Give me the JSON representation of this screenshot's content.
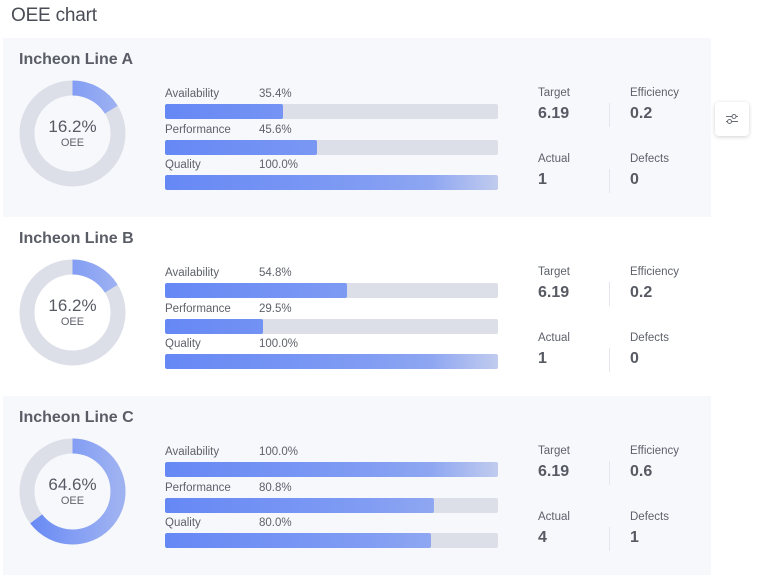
{
  "page": {
    "title": "OEE chart"
  },
  "settings_button": {
    "icon": "sliders-icon"
  },
  "colors": {
    "card_bg": "#f6f8fc",
    "accent": "#6688f5",
    "track": "#dcdfe7",
    "text": "#5b5f6b"
  },
  "lines": [
    {
      "name": "Incheon Line A",
      "shaded": true,
      "oee": {
        "value_text": "16.2%",
        "value": 16.2,
        "label": "OEE"
      },
      "metrics": [
        {
          "label": "Availability",
          "value_text": "35.4%",
          "value": 35.4
        },
        {
          "label": "Performance",
          "value_text": "45.6%",
          "value": 45.6
        },
        {
          "label": "Quality",
          "value_text": "100.0%",
          "value": 100.0
        }
      ],
      "stats": {
        "target": {
          "label": "Target",
          "value": "6.19"
        },
        "efficiency": {
          "label": "Efficiency",
          "value": "0.2"
        },
        "actual": {
          "label": "Actual",
          "value": "1"
        },
        "defects": {
          "label": "Defects",
          "value": "0"
        }
      }
    },
    {
      "name": "Incheon Line B",
      "shaded": false,
      "oee": {
        "value_text": "16.2%",
        "value": 16.2,
        "label": "OEE"
      },
      "metrics": [
        {
          "label": "Availability",
          "value_text": "54.8%",
          "value": 54.8
        },
        {
          "label": "Performance",
          "value_text": "29.5%",
          "value": 29.5
        },
        {
          "label": "Quality",
          "value_text": "100.0%",
          "value": 100.0
        }
      ],
      "stats": {
        "target": {
          "label": "Target",
          "value": "6.19"
        },
        "efficiency": {
          "label": "Efficiency",
          "value": "0.2"
        },
        "actual": {
          "label": "Actual",
          "value": "1"
        },
        "defects": {
          "label": "Defects",
          "value": "0"
        }
      }
    },
    {
      "name": "Incheon Line C",
      "shaded": true,
      "oee": {
        "value_text": "64.6%",
        "value": 64.6,
        "label": "OEE"
      },
      "metrics": [
        {
          "label": "Availability",
          "value_text": "100.0%",
          "value": 100.0
        },
        {
          "label": "Performance",
          "value_text": "80.8%",
          "value": 80.8
        },
        {
          "label": "Quality",
          "value_text": "80.0%",
          "value": 80.0
        }
      ],
      "stats": {
        "target": {
          "label": "Target",
          "value": "6.19"
        },
        "efficiency": {
          "label": "Efficiency",
          "value": "0.6"
        },
        "actual": {
          "label": "Actual",
          "value": "4"
        },
        "defects": {
          "label": "Defects",
          "value": "1"
        }
      }
    }
  ]
}
